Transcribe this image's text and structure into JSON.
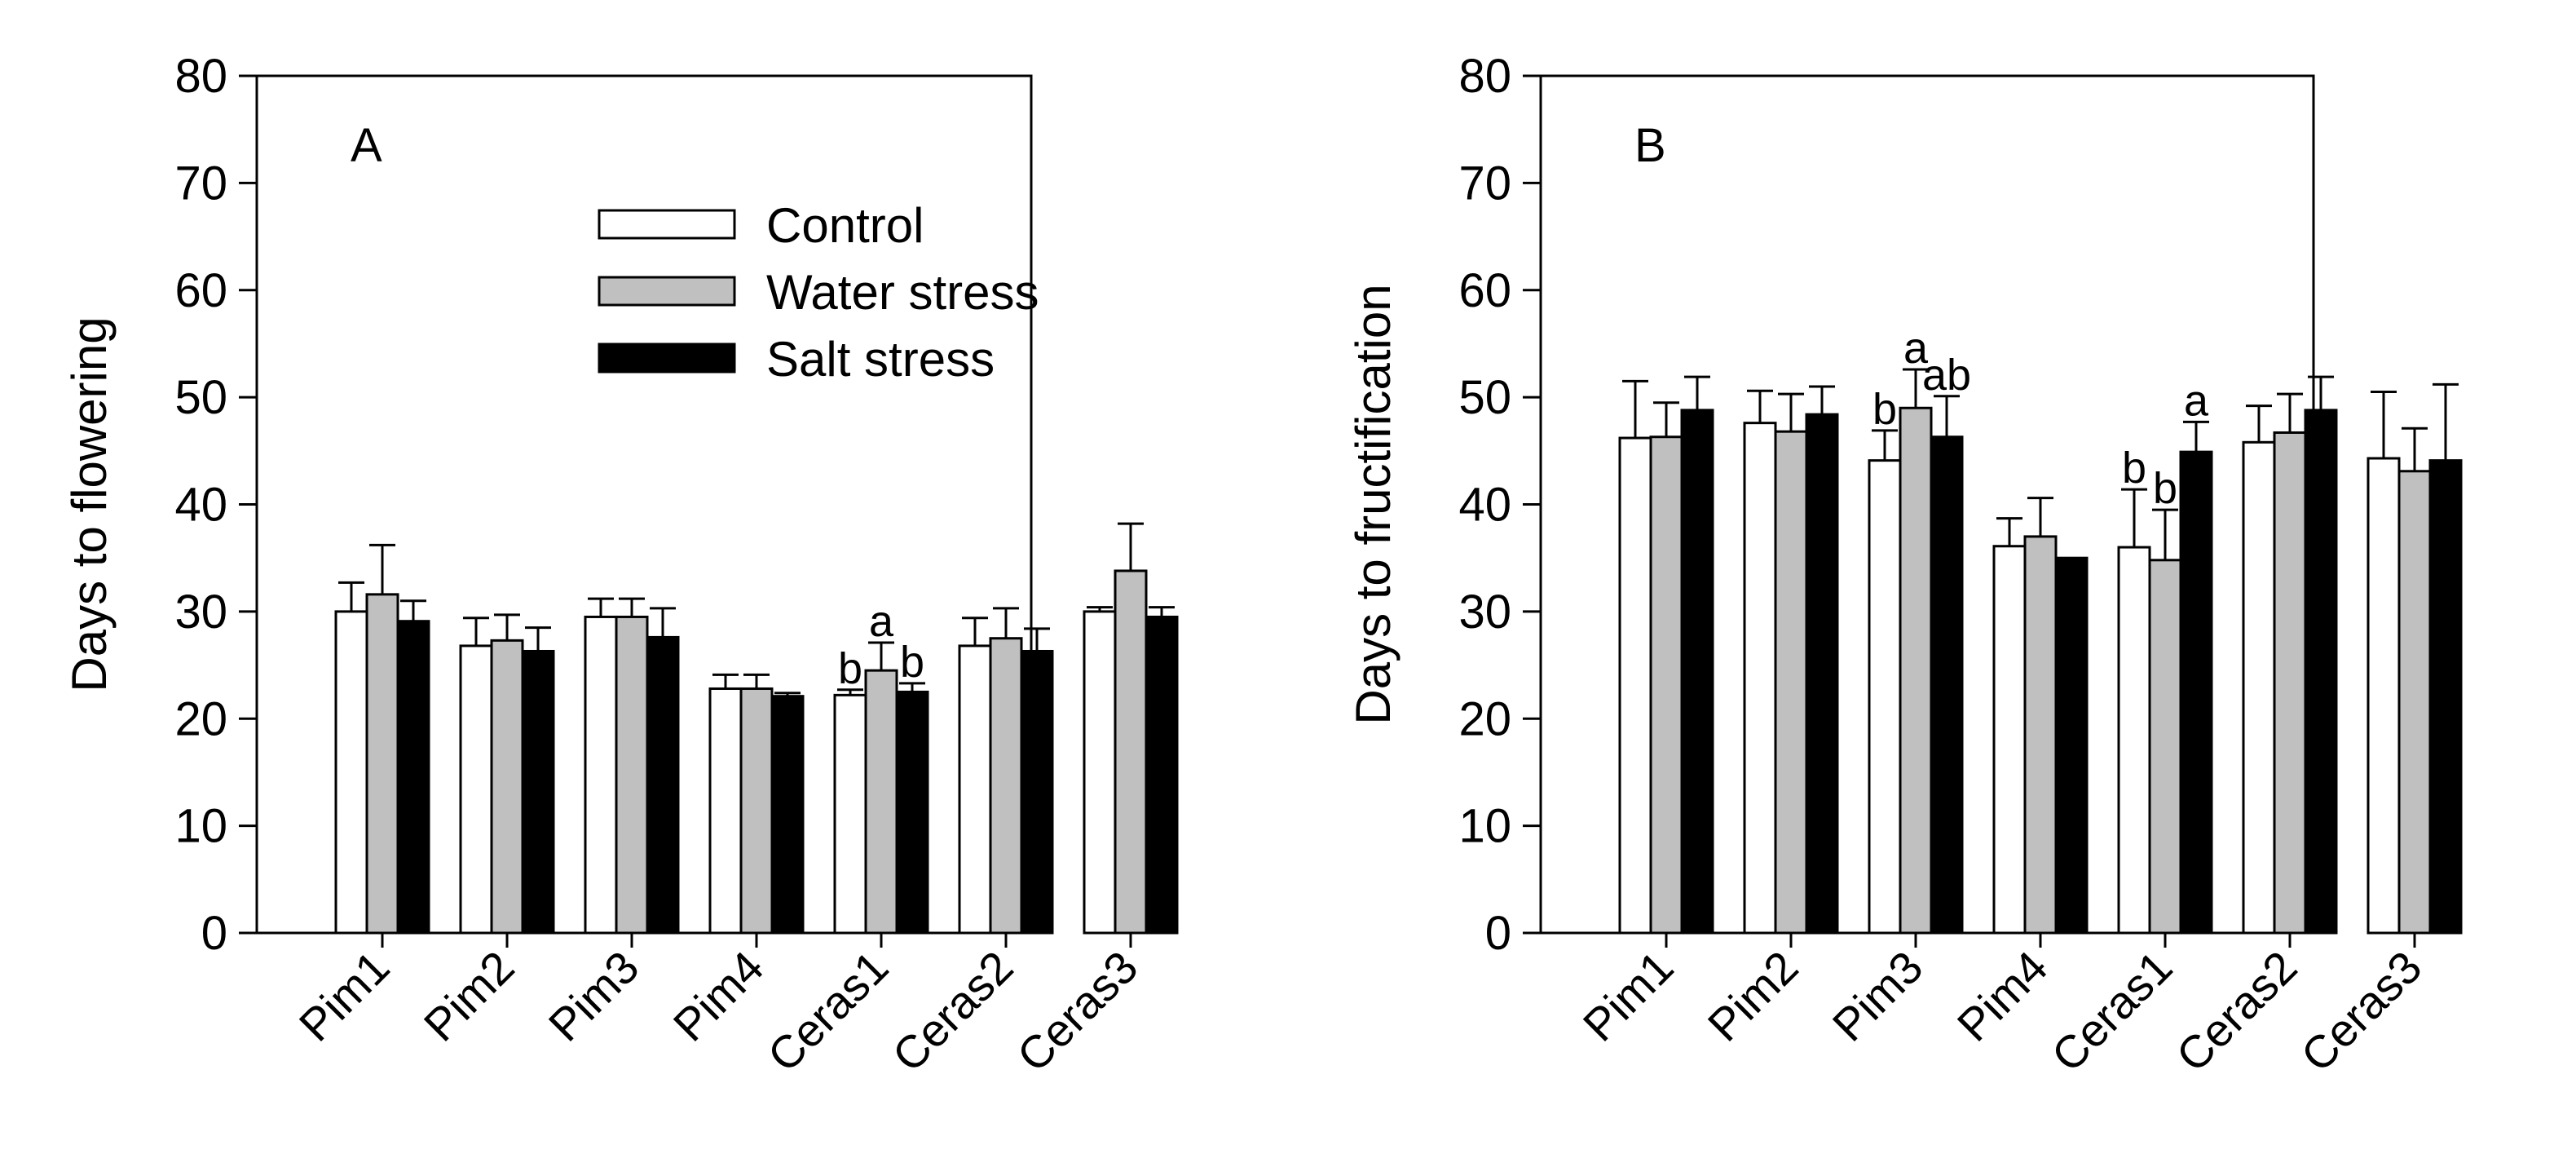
{
  "chart_data": [
    {
      "type": "bar",
      "panel_label": "A",
      "ylabel": "Days to flowering",
      "xlabel": "",
      "ylim": [
        0,
        80
      ],
      "yticks": [
        0,
        10,
        20,
        30,
        40,
        50,
        60,
        70,
        80
      ],
      "grid": false,
      "legend_position": "top-center",
      "categories": [
        "Pim1",
        "Pim2",
        "Pim3",
        "Pim4",
        "Ceras1",
        "Ceras2",
        "Ceras3"
      ],
      "series": [
        {
          "name": "Control",
          "color": "#ffffff",
          "values": [
            30,
            26.8,
            29.5,
            22.8,
            22.2,
            26.8,
            30
          ],
          "errors": [
            2.7,
            2.6,
            1.7,
            1.3,
            0.5,
            2.6,
            0.4
          ]
        },
        {
          "name": "Water stress",
          "color": "#c0c0c0",
          "values": [
            31.6,
            27.3,
            29.5,
            22.8,
            24.5,
            27.5,
            33.8
          ],
          "errors": [
            4.6,
            2.4,
            1.7,
            1.3,
            2.6,
            2.8,
            4.4
          ]
        },
        {
          "name": "Salt stress",
          "color": "#000000",
          "values": [
            29.1,
            26.3,
            27.6,
            22.1,
            22.5,
            26.3,
            29.5
          ],
          "errors": [
            1.9,
            2.2,
            2.7,
            0.3,
            0.8,
            2.1,
            0.9
          ]
        }
      ],
      "annotations": [
        {
          "text": "b",
          "category": "Ceras1",
          "series": "Control"
        },
        {
          "text": "a",
          "category": "Ceras1",
          "series": "Water stress"
        },
        {
          "text": "b",
          "category": "Ceras1",
          "series": "Salt stress"
        }
      ]
    },
    {
      "type": "bar",
      "panel_label": "B",
      "ylabel": "Days to fructification",
      "xlabel": "",
      "ylim": [
        0,
        80
      ],
      "yticks": [
        0,
        10,
        20,
        30,
        40,
        50,
        60,
        70,
        80
      ],
      "grid": false,
      "legend_position": "none",
      "categories": [
        "Pim1",
        "Pim2",
        "Pim3",
        "Pim4",
        "Ceras1",
        "Ceras2",
        "Ceras3"
      ],
      "series": [
        {
          "name": "Control",
          "color": "#ffffff",
          "values": [
            46.2,
            47.6,
            44.1,
            36.1,
            36,
            45.8,
            44.3
          ],
          "errors": [
            5.3,
            3,
            2.8,
            2.6,
            5.4,
            3.4,
            6.2
          ]
        },
        {
          "name": "Water stress",
          "color": "#c0c0c0",
          "values": [
            46.3,
            46.8,
            49,
            37,
            34.8,
            46.7,
            43.1
          ],
          "errors": [
            3.2,
            3.5,
            3.6,
            3.6,
            4.7,
            3.6,
            4
          ]
        },
        {
          "name": "Salt stress",
          "color": "#000000",
          "values": [
            48.8,
            48.4,
            46.3,
            35,
            44.9,
            48.8,
            44.1
          ],
          "errors": [
            3.1,
            2.6,
            3.8,
            0,
            2.8,
            3.1,
            7.1
          ]
        }
      ],
      "annotations": [
        {
          "text": "b",
          "category": "Pim3",
          "series": "Control"
        },
        {
          "text": "a",
          "category": "Pim3",
          "series": "Water stress"
        },
        {
          "text": "ab",
          "category": "Pim3",
          "series": "Salt stress"
        },
        {
          "text": "b",
          "category": "Ceras1",
          "series": "Control"
        },
        {
          "text": "b",
          "category": "Ceras1",
          "series": "Water stress"
        },
        {
          "text": "a",
          "category": "Ceras1",
          "series": "Salt stress"
        }
      ]
    }
  ]
}
